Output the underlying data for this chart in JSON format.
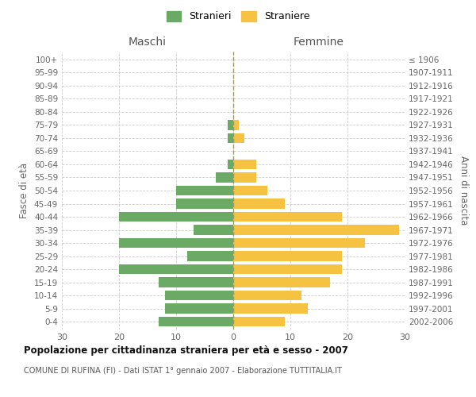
{
  "age_groups": [
    "0-4",
    "5-9",
    "10-14",
    "15-19",
    "20-24",
    "25-29",
    "30-34",
    "35-39",
    "40-44",
    "45-49",
    "50-54",
    "55-59",
    "60-64",
    "65-69",
    "70-74",
    "75-79",
    "80-84",
    "85-89",
    "90-94",
    "95-99",
    "100+"
  ],
  "birth_years": [
    "2002-2006",
    "1997-2001",
    "1992-1996",
    "1987-1991",
    "1982-1986",
    "1977-1981",
    "1972-1976",
    "1967-1971",
    "1962-1966",
    "1957-1961",
    "1952-1956",
    "1947-1951",
    "1942-1946",
    "1937-1941",
    "1932-1936",
    "1927-1931",
    "1922-1926",
    "1917-1921",
    "1912-1916",
    "1907-1911",
    "≤ 1906"
  ],
  "males": [
    13,
    12,
    12,
    13,
    20,
    8,
    20,
    7,
    20,
    10,
    10,
    3,
    1,
    0,
    1,
    1,
    0,
    0,
    0,
    0,
    0
  ],
  "females": [
    9,
    13,
    12,
    17,
    19,
    19,
    23,
    29,
    19,
    9,
    6,
    4,
    4,
    0,
    2,
    1,
    0,
    0,
    0,
    0,
    0
  ],
  "male_color": "#6aaa64",
  "female_color": "#f5c242",
  "background_color": "#ffffff",
  "grid_color": "#cccccc",
  "title": "Popolazione per cittadinanza straniera per età e sesso - 2007",
  "subtitle": "COMUNE DI RUFINA (FI) - Dati ISTAT 1° gennaio 2007 - Elaborazione TUTTITALIA.IT",
  "ylabel_left": "Fasce di età",
  "ylabel_right": "Anni di nascita",
  "xlabel_left": "Maschi",
  "xlabel_right": "Femmine",
  "legend_male": "Stranieri",
  "legend_female": "Straniere",
  "xlim": 30,
  "bar_height": 0.75
}
